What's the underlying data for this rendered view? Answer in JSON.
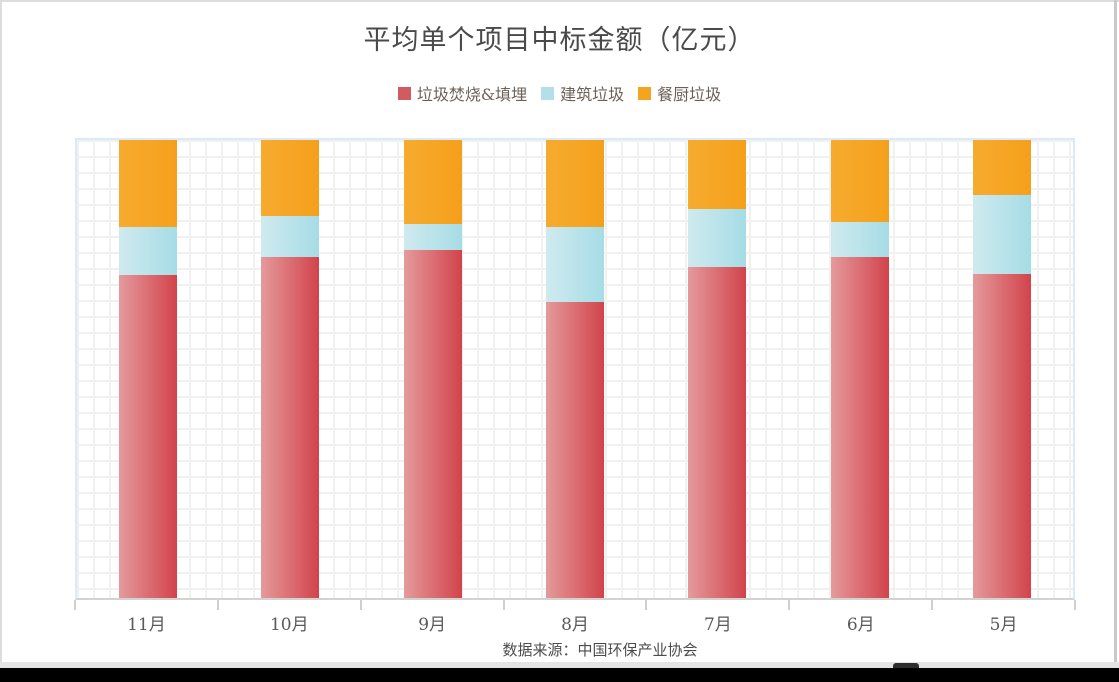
{
  "page": {
    "title": "平均单个项目中标金额（亿元）",
    "footer": "数据来源：中国环保产业协会"
  },
  "colors": {
    "grid_line": "#f1f1f1",
    "plot_border": "#dbe9f8",
    "axis_line": "#d2d2d2",
    "title_text": "#4a4a4a",
    "legend_text": "#6d6157",
    "axis_label_text": "#595959"
  },
  "chart_data": {
    "type": "bar",
    "stacked": true,
    "percent_stacked": true,
    "title": "平均单个项目中标金额（亿元）",
    "xlabel": "",
    "ylabel": "",
    "ylim": [
      0,
      100
    ],
    "grid": true,
    "legend_position": "top",
    "source_note": "数据来源：中国环保产业协会",
    "categories": [
      "11月",
      "10月",
      "9月",
      "8月",
      "7月",
      "6月",
      "5月"
    ],
    "series": [
      {
        "name": "垃圾焚烧&填埋",
        "swatch": "#d05c60",
        "color_start": "#e49a9c",
        "color_end": "#d2434b",
        "values": [
          70.6,
          74.5,
          76.0,
          64.7,
          72.3,
          74.5,
          70.8
        ]
      },
      {
        "name": "建筑垃圾",
        "swatch": "#b3dfe8",
        "color_start": "#cfeaef",
        "color_end": "#a6dce6",
        "values": [
          10.4,
          8.9,
          5.6,
          16.3,
          12.6,
          7.6,
          17.3
        ]
      },
      {
        "name": "餐厨垃圾",
        "swatch": "#f5a41f",
        "color_start": "#f6ab2e",
        "color_end": "#f5a01c",
        "values": [
          19.0,
          16.6,
          18.4,
          19.0,
          15.1,
          17.9,
          11.9
        ]
      }
    ]
  }
}
